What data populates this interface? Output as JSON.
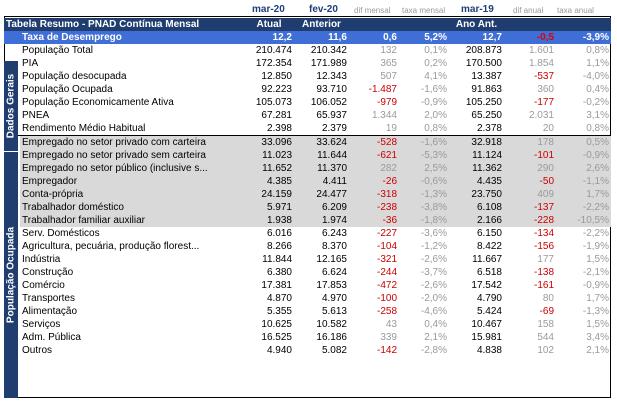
{
  "headers": {
    "mar20": "mar-20",
    "fev20": "fev-20",
    "dif_mensal": "dif mensal",
    "taxa_mensal": "taxa mensal",
    "mar19": "mar-19",
    "dif_anual": "dif anual",
    "taxa_anual": "taxa anual"
  },
  "title_row": {
    "title": "Tabela Resumo - PNAD Contínua Mensal",
    "atual": "Atual",
    "anterior": "Anterior",
    "ano_ant": "Ano Ant."
  },
  "highlight": {
    "label": "Taxa de Desemprego",
    "v1": "12,2",
    "v2": "11,6",
    "v3": "0,6",
    "v4": "5,2%",
    "v5": "12,7",
    "v6": "-0,5",
    "v7": "-3,9%"
  },
  "groups": {
    "dados_gerais": "Dados Gerais",
    "populacao_ocupada": "População Ocupada"
  },
  "rows_dados": [
    {
      "label": "População Total",
      "v1": "210.474",
      "v2": "210.342",
      "v3": "132",
      "v4": "0,1%",
      "v5": "208.873",
      "v6": "1.601",
      "v7": "0,8%"
    },
    {
      "label": "PIA",
      "v1": "172.354",
      "v2": "171.989",
      "v3": "365",
      "v4": "0,2%",
      "v5": "170.500",
      "v6": "1.854",
      "v7": "1,1%"
    },
    {
      "label": "População desocupada",
      "v1": "12.850",
      "v2": "12.343",
      "v3": "507",
      "v4": "4,1%",
      "v5": "13.387",
      "v6": "-537",
      "v7": "-4,0%"
    },
    {
      "label": "População Ocupada",
      "v1": "92.223",
      "v2": "93.710",
      "v3": "-1.487",
      "v4": "-1,6%",
      "v5": "91.863",
      "v6": "360",
      "v7": "0,4%"
    },
    {
      "label": "População Economicamente Ativa",
      "v1": "105.073",
      "v2": "106.052",
      "v3": "-979",
      "v4": "-0,9%",
      "v5": "105.250",
      "v6": "-177",
      "v7": "-0,2%"
    },
    {
      "label": "PNEA",
      "v1": "67.281",
      "v2": "65.937",
      "v3": "1.344",
      "v4": "2,0%",
      "v5": "65.250",
      "v6": "2.031",
      "v7": "3,1%"
    },
    {
      "label": "Rendimento Médio Habitual",
      "v1": "2.398",
      "v2": "2.379",
      "v3": "19",
      "v4": "0,8%",
      "v5": "2.378",
      "v6": "20",
      "v7": "0,8%"
    }
  ],
  "rows_grey": [
    {
      "label": "Empregado no setor privado com carteira",
      "v1": "33.096",
      "v2": "33.624",
      "v3": "-528",
      "v4": "-1,6%",
      "v5": "32.918",
      "v6": "178",
      "v7": "0,5%"
    },
    {
      "label": "Empregado no setor privado sem carteira",
      "v1": "11.023",
      "v2": "11.644",
      "v3": "-621",
      "v4": "-5,3%",
      "v5": "11.124",
      "v6": "-101",
      "v7": "-0,9%"
    },
    {
      "label": "Empregado no setor público (inclusive s...",
      "v1": "11.652",
      "v2": "11.370",
      "v3": "282",
      "v4": "2,5%",
      "v5": "11.362",
      "v6": "290",
      "v7": "2,6%"
    },
    {
      "label": "Empregador",
      "v1": "4.385",
      "v2": "4.411",
      "v3": "-26",
      "v4": "-0,6%",
      "v5": "4.435",
      "v6": "-50",
      "v7": "-1,1%"
    },
    {
      "label": "Conta-própria",
      "v1": "24.159",
      "v2": "24.477",
      "v3": "-318",
      "v4": "-1,3%",
      "v5": "23.750",
      "v6": "409",
      "v7": "1,7%"
    },
    {
      "label": "Trabalhador doméstico",
      "v1": "5.971",
      "v2": "6.209",
      "v3": "-238",
      "v4": "-3,8%",
      "v5": "6.108",
      "v6": "-137",
      "v7": "-2,2%"
    },
    {
      "label": "Trabalhador familiar auxiliar",
      "v1": "1.938",
      "v2": "1.974",
      "v3": "-36",
      "v4": "-1,8%",
      "v5": "2.166",
      "v6": "-228",
      "v7": "-10,5%"
    }
  ],
  "rows_sector": [
    {
      "label": "Serv. Domésticos",
      "v1": "6.016",
      "v2": "6.243",
      "v3": "-227",
      "v4": "-3,6%",
      "v5": "6.150",
      "v6": "-134",
      "v7": "-2,2%"
    },
    {
      "label": "Agricultura, pecuária, produção florest...",
      "v1": "8.266",
      "v2": "8.370",
      "v3": "-104",
      "v4": "-1,2%",
      "v5": "8.422",
      "v6": "-156",
      "v7": "-1,9%"
    },
    {
      "label": "Indústria",
      "v1": "11.844",
      "v2": "12.165",
      "v3": "-321",
      "v4": "-2,6%",
      "v5": "11.667",
      "v6": "177",
      "v7": "1,5%"
    },
    {
      "label": "Construção",
      "v1": "6.380",
      "v2": "6.624",
      "v3": "-244",
      "v4": "-3,7%",
      "v5": "6.518",
      "v6": "-138",
      "v7": "-2,1%"
    },
    {
      "label": "Comércio",
      "v1": "17.381",
      "v2": "17.853",
      "v3": "-472",
      "v4": "-2,6%",
      "v5": "17.542",
      "v6": "-161",
      "v7": "-0,9%"
    },
    {
      "label": "Transportes",
      "v1": "4.870",
      "v2": "4.970",
      "v3": "-100",
      "v4": "-2,0%",
      "v5": "4.790",
      "v6": "80",
      "v7": "1,7%"
    },
    {
      "label": "Alimentação",
      "v1": "5.355",
      "v2": "5.613",
      "v3": "-258",
      "v4": "-4,6%",
      "v5": "5.424",
      "v6": "-69",
      "v7": "-1,3%"
    },
    {
      "label": "Serviços",
      "v1": "10.625",
      "v2": "10.582",
      "v3": "43",
      "v4": "0,4%",
      "v5": "10.467",
      "v6": "158",
      "v7": "1,5%"
    },
    {
      "label": "Adm. Pública",
      "v1": "16.525",
      "v2": "16.186",
      "v3": "339",
      "v4": "2,1%",
      "v5": "15.981",
      "v6": "544",
      "v7": "3,4%"
    },
    {
      "label": "Outros",
      "v1": "4.940",
      "v2": "5.082",
      "v3": "-142",
      "v4": "-2,8%",
      "v5": "4.838",
      "v6": "102",
      "v7": "2,1%"
    }
  ]
}
